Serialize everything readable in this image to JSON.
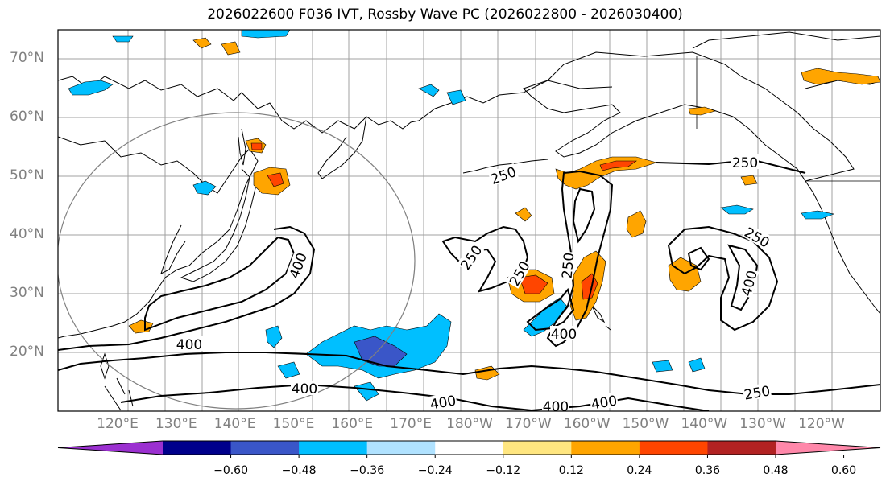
{
  "title": "2026022600 F036 IVT, Rossby Wave PC (2026022800 - 2026030400)",
  "latitude_labels": [
    "70°N",
    "60°N",
    "50°N",
    "40°N",
    "30°N",
    "20°N"
  ],
  "longitude_labels": [
    "120°E",
    "130°E",
    "140°E",
    "150°E",
    "160°E",
    "170°E",
    "180°W",
    "170°W",
    "160°W",
    "150°W",
    "140°W",
    "130°W",
    "120°W"
  ],
  "contour_labels": [
    "250",
    "250",
    "250",
    "250",
    "250",
    "250",
    "250",
    "400",
    "400",
    "400",
    "400",
    "400",
    "400",
    "400",
    "400"
  ],
  "colorbar": {
    "ticks": [
      "−0.60",
      "−0.48",
      "−0.36",
      "−0.24",
      "−0.12",
      "0.12",
      "0.24",
      "0.36",
      "0.48",
      "0.60"
    ],
    "colors": [
      "#9b30d0",
      "#00008b",
      "#3a56c8",
      "#00bfff",
      "#b0e2ff",
      "#ffffff",
      "#ffe680",
      "#ffa500",
      "#ff4500",
      "#b22222",
      "#ff88aa"
    ]
  },
  "colors": {
    "contour": "#000000",
    "coastline": "#000000",
    "circle": "#808080",
    "grid": "#a0a0a0"
  }
}
